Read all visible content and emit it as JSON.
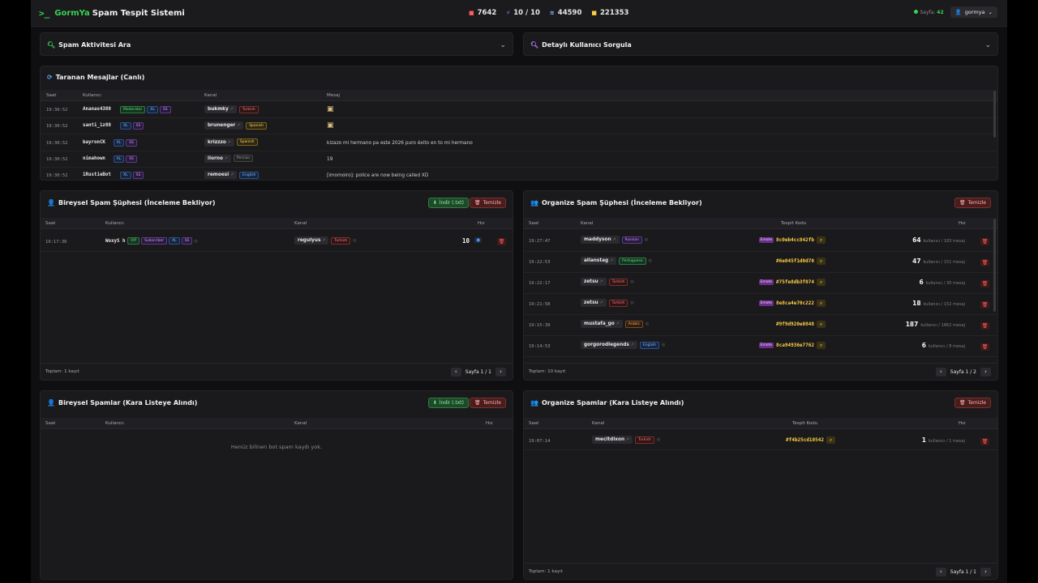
{
  "app": {
    "logo": ">_",
    "brand_a": "GormYa",
    "brand_b": "Spam Tespit Sistemi"
  },
  "stats": [
    {
      "icon": "video-icon",
      "value": "7642",
      "color": "#ff5c5c"
    },
    {
      "icon": "bolt-icon",
      "value": "10 / 10",
      "color": "#b77cff"
    },
    {
      "icon": "rss-icon",
      "value": "44590",
      "color": "#8bb8ff"
    },
    {
      "icon": "database-icon",
      "value": "221353",
      "color": "#ffcf40"
    }
  ],
  "topright": {
    "online_label": "Sayfa:",
    "online_value": "42",
    "user": "gormya"
  },
  "search_panel": {
    "title": "Spam Aktivitesi Ara"
  },
  "user_panel": {
    "title": "Detaylı Kullanıcı Sorgula"
  },
  "live": {
    "title": "Taranan Mesajlar (Canlı)",
    "headers": [
      "Saat",
      "Kullanıcı",
      "Kanal",
      "Mesaj"
    ],
    "rows": [
      {
        "time": "19:30:52",
        "user": "Ananas4380",
        "badges": [
          [
            "Moderator",
            "b-mod"
          ],
          [
            "XL",
            "b-xl"
          ],
          [
            "SS",
            "b-ss"
          ]
        ],
        "channel": "bukmky",
        "lang": [
          "Turkish",
          "l-tr"
        ],
        "msg": "",
        "emoji": true
      },
      {
        "time": "19:30:52",
        "user": "santi_1z80",
        "badges": [
          [
            "XL",
            "b-xl"
          ],
          [
            "SS",
            "b-ss"
          ]
        ],
        "channel": "brunenger",
        "lang": [
          "Spanish",
          "l-es"
        ],
        "msg": "",
        "emoji": true
      },
      {
        "time": "19:30:52",
        "user": "bayronCK",
        "badges": [
          [
            "XL",
            "b-xl"
          ],
          [
            "SS",
            "b-ss"
          ]
        ],
        "channel": "krizzzo",
        "lang": [
          "Spanish",
          "l-es"
        ],
        "msg": "kizazo mi hermano pa este 2026 puro éxito en to mi hermano",
        "emoji": false
      },
      {
        "time": "19:30:52",
        "user": "nimahown",
        "badges": [
          [
            "XL",
            "b-xl"
          ],
          [
            "SS",
            "b-ss"
          ]
        ],
        "channel": "ilorno",
        "lang": [
          "Persian",
          "l-fa"
        ],
        "msg": "19",
        "emoji": false
      },
      {
        "time": "19:30:52",
        "user": "1RustieBot",
        "badges": [
          [
            "XL",
            "b-xl"
          ],
          [
            "SS",
            "b-ss"
          ]
        ],
        "channel": "remoesi",
        "lang": [
          "English",
          "l-en"
        ],
        "msg": "[imomoiro]: police are now being called XD",
        "emoji": false
      }
    ]
  },
  "ind_suspect": {
    "title": "Bireysel Spam Şüphesi (İnceleme Bekliyor)",
    "download": "İndir (.txt)",
    "clear": "Temizle",
    "headers": [
      "Saat",
      "Kullanıcı",
      "Kanal",
      "Hız"
    ],
    "rows": [
      {
        "time": "19:17:30",
        "user": "WoxyS h",
        "badges": [
          [
            "VIP",
            "b-vip"
          ],
          [
            "Subscriber",
            "b-sub"
          ],
          [
            "XL",
            "b-xl"
          ],
          [
            "SS",
            "b-ss"
          ]
        ],
        "channel": "regulyus",
        "lang": [
          "Turkish",
          "l-tr"
        ],
        "hz": "10"
      }
    ],
    "total": "Toplam: 1 kayıt",
    "page": "Sayfa 1 / 1"
  },
  "org_suspect": {
    "title": "Organize Spam Şüphesi (İnceleme Bekliyor)",
    "clear": "Temizle",
    "headers": [
      "Saat",
      "Kanal",
      "Tespit Kodu",
      "Hız"
    ],
    "rows": [
      {
        "time": "19:27:47",
        "channel": "maddyson",
        "lang": [
          "Russian",
          "l-ru"
        ],
        "emote": true,
        "code": "8c0eb4cc842fb",
        "hz": "64",
        "sub": "kullanıcı / 183 mesaj"
      },
      {
        "time": "19:22:53",
        "channel": "allanstag",
        "lang": [
          "Portuguese",
          "l-pt"
        ],
        "emote": false,
        "code": "#6e045f1d0d70",
        "hz": "47",
        "sub": "kullanıcı / 151 mesaj"
      },
      {
        "time": "19:22:17",
        "channel": "zetsu",
        "lang": [
          "Turkish",
          "l-tr"
        ],
        "emote": true,
        "code": "#75fe8db3f074",
        "hz": "6",
        "sub": "kullanıcı / 30 mesaj"
      },
      {
        "time": "19:21:58",
        "channel": "zetsu",
        "lang": [
          "Turkish",
          "l-tr"
        ],
        "emote": true,
        "code": "8e8ca4e70c222",
        "hz": "18",
        "sub": "kullanıcı / 152 mesaj"
      },
      {
        "time": "19:15:39",
        "channel": "mustafa_go",
        "lang": [
          "Arabic",
          "l-ar"
        ],
        "emote": false,
        "code": "#9f9d920e0848",
        "hz": "187",
        "sub": "kullanıcı / 1862 mesaj"
      },
      {
        "time": "19:14:53",
        "channel": "gorgorodlegends",
        "lang": [
          "English",
          "l-en"
        ],
        "emote": true,
        "code": "8ca94936e7762",
        "hz": "6",
        "sub": "kullanıcı / 8 mesaj"
      }
    ],
    "total": "Toplam: 10 kayıt",
    "page": "Sayfa 1 / 2"
  },
  "ind_black": {
    "title": "Bireysel Spamlar (Kara Listeye Alındı)",
    "download": "İndir (.txt)",
    "clear": "Temizle",
    "headers": [
      "Saat",
      "Kullanıcı",
      "Kanal",
      "Hız"
    ],
    "empty": "Henüz bilinen bot spam kaydı yok."
  },
  "org_black": {
    "title": "Organize Spamlar (Kara Listeye Alındı)",
    "clear": "Temizle",
    "headers": [
      "Saat",
      "Kanal",
      "Tespit Kodu",
      "Hız"
    ],
    "rows": [
      {
        "time": "19:07:14",
        "channel": "mecitdixon",
        "lang": [
          "Turkish",
          "l-tr"
        ],
        "emote": false,
        "code": "#f4b25cd10542",
        "hz": "1",
        "sub": "kullanıcı / 1 mesaj"
      }
    ],
    "total": "Toplam: 1 kayıt",
    "page": "Sayfa 1 / 1"
  }
}
